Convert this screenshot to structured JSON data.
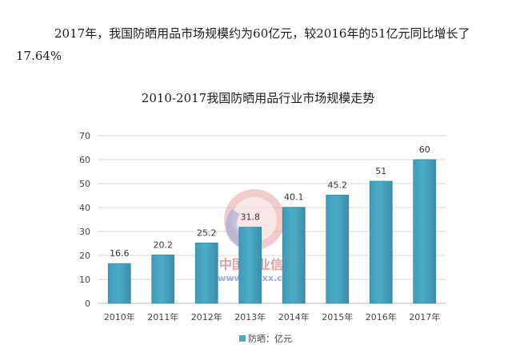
{
  "intro_text": "2017年，我国防晒用品市场规模约为60亿元，较2016年的51亿元同比增长了17.64%",
  "watermark": {
    "cn": "中国产业信息",
    "url": "www.chyxx.com"
  },
  "colors": {
    "bar_fill": "#4bacc6",
    "bar_stroke": "#3a8aa3",
    "grid": "#d9d9d9",
    "axis": "#bfbfbf"
  },
  "chart_data": {
    "type": "bar",
    "title": "2010-2017我国防晒用品行业市场规模走势",
    "categories": [
      "2010年",
      "2011年",
      "2012年",
      "2013年",
      "2014年",
      "2015年",
      "2016年",
      "2017年"
    ],
    "series": [
      {
        "name": "防晒：亿元",
        "values": [
          16.6,
          20.2,
          25.2,
          31.8,
          40.1,
          45.2,
          51,
          60
        ],
        "labels": [
          "16.6",
          "20.2",
          "25.2",
          "31.8",
          "40.1",
          "45.2",
          "51",
          "60"
        ]
      }
    ],
    "yticks": [
      0,
      10,
      20,
      30,
      40,
      50,
      60,
      70
    ],
    "ylim": [
      0,
      70
    ],
    "grid": true,
    "legend": "bottom",
    "xlabel": "",
    "ylabel": ""
  }
}
